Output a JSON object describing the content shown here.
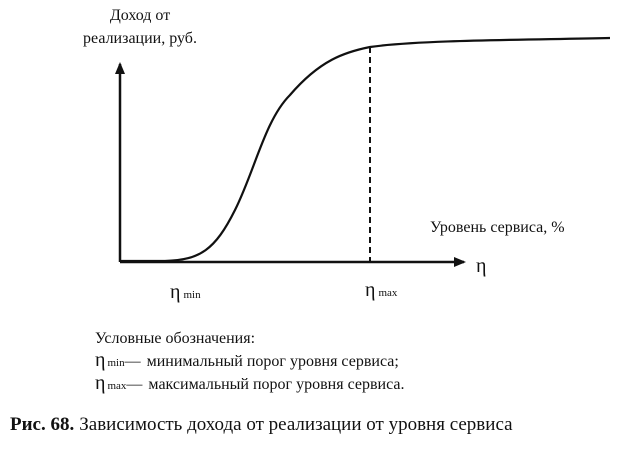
{
  "axes": {
    "y_label": [
      "Доход от",
      "реализации, руб."
    ],
    "x_label": "Уровень сервиса, %",
    "x_symbol": "η"
  },
  "markers": [
    {
      "symbol": "η",
      "subscript": "min"
    },
    {
      "symbol": "η",
      "subscript": "max"
    }
  ],
  "legend": {
    "title": "Условные обозначения:",
    "items": [
      {
        "symbol": "η",
        "subscript": "min",
        "dash": "—",
        "text": "минимальный порог уровня сервиса;"
      },
      {
        "symbol": "η",
        "subscript": "max",
        "dash": "—",
        "text": "максимальный порог уровня сервиса."
      }
    ]
  },
  "caption": {
    "label": "Рис. 68.",
    "text": "Зависимость дохода от реализации от уровня сервиса"
  }
}
